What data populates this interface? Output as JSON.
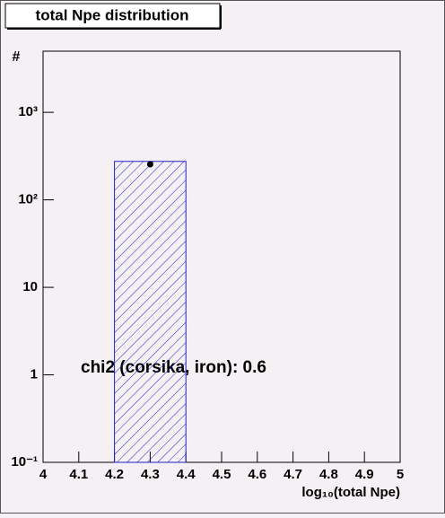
{
  "chart_data": {
    "type": "histogram",
    "title": "total Npe distribution",
    "x_label": "log₁₀(total Npe)",
    "y_label": "#",
    "annotation": "chi2 (corsika, iron): 0.6",
    "bins": [
      4.2,
      4.4
    ],
    "values": [
      275
    ],
    "color": "#2020c0",
    "points": {
      "x": [
        4.3
      ],
      "y": [
        255
      ],
      "errors": [
        16
      ],
      "color": "#000000"
    },
    "xlim": [
      4,
      5
    ],
    "xticks": [
      4,
      4.1,
      4.2,
      4.3,
      4.4,
      4.5,
      4.6,
      4.7,
      4.8,
      4.9,
      5
    ],
    "ylim": [
      0.1,
      5000
    ],
    "log_y": true,
    "yticks": [
      {
        "value": 0.1,
        "label": "10⁻¹"
      },
      1,
      10,
      {
        "value": 100,
        "label": "10²"
      },
      {
        "value": 1000,
        "label": "10³"
      }
    ]
  }
}
